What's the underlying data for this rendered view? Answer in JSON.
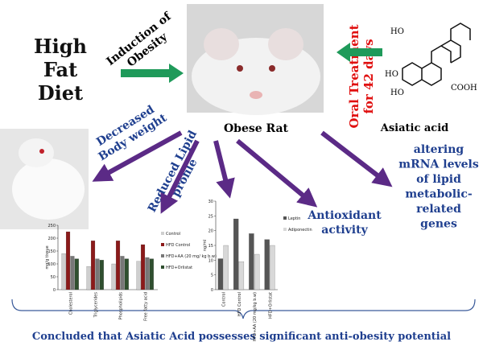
{
  "diet": [
    "High",
    "Fat",
    "Diet"
  ],
  "induction": [
    "Induction of",
    "Obesity"
  ],
  "center_label": "Obese Rat",
  "treatment": [
    "Oral Treatment",
    "for 42 days"
  ],
  "compound_label": "Asiatic acid",
  "compound_groups": [
    "HO",
    "HO",
    "HO",
    "COOH"
  ],
  "body_weight": [
    "Decreased",
    "Body weight"
  ],
  "lipid": [
    "Reduced Lipid",
    "profile"
  ],
  "antioxidant": [
    "Antioxidant",
    "activity"
  ],
  "mrna": [
    "altering",
    "mRNA levels",
    "of lipid",
    "metabolic-",
    "related",
    "genes"
  ],
  "conclusion": "Concluded that Asiatic Acid possesses significant anti-obesity potential",
  "lipid_chart": {
    "ylabel": "mg/g tissue",
    "categories": [
      "Cholesterol",
      "Triglycerides",
      "Phospholipids",
      "Free fatty acid"
    ],
    "series": [
      {
        "name": "Control",
        "color": "#cfcfcf",
        "values": [
          140,
          90,
          100,
          110
        ]
      },
      {
        "name": "HFD Control",
        "color": "#8b1a1a",
        "values": [
          225,
          190,
          190,
          175
        ]
      },
      {
        "name": "HFD+AA (20 mg/ kg b.w)",
        "color": "#777777",
        "values": [
          130,
          120,
          130,
          125
        ]
      },
      {
        "name": "HFD+Orlistat",
        "color": "#2f4f2f",
        "values": [
          120,
          115,
          120,
          120
        ]
      }
    ],
    "ylim": [
      0,
      250
    ],
    "yticks": [
      0,
      50,
      100,
      150,
      200,
      250
    ]
  },
  "hormone_chart": {
    "ylabel": "ng/ml",
    "categories": [
      "Control",
      "HFD Control",
      "HFD+AA (20 mg/kg b.w)",
      "HFD+Orlistat"
    ],
    "series": [
      {
        "name": "Leptin",
        "color": "#555555",
        "values": [
          10.5,
          24,
          19,
          17
        ]
      },
      {
        "name": "Adiponectin",
        "color": "#d8d8d8",
        "values": [
          15,
          9.5,
          12,
          15
        ]
      }
    ],
    "ylim": [
      0,
      30
    ],
    "yticks": [
      0,
      5,
      10,
      15,
      20,
      25,
      30
    ]
  }
}
